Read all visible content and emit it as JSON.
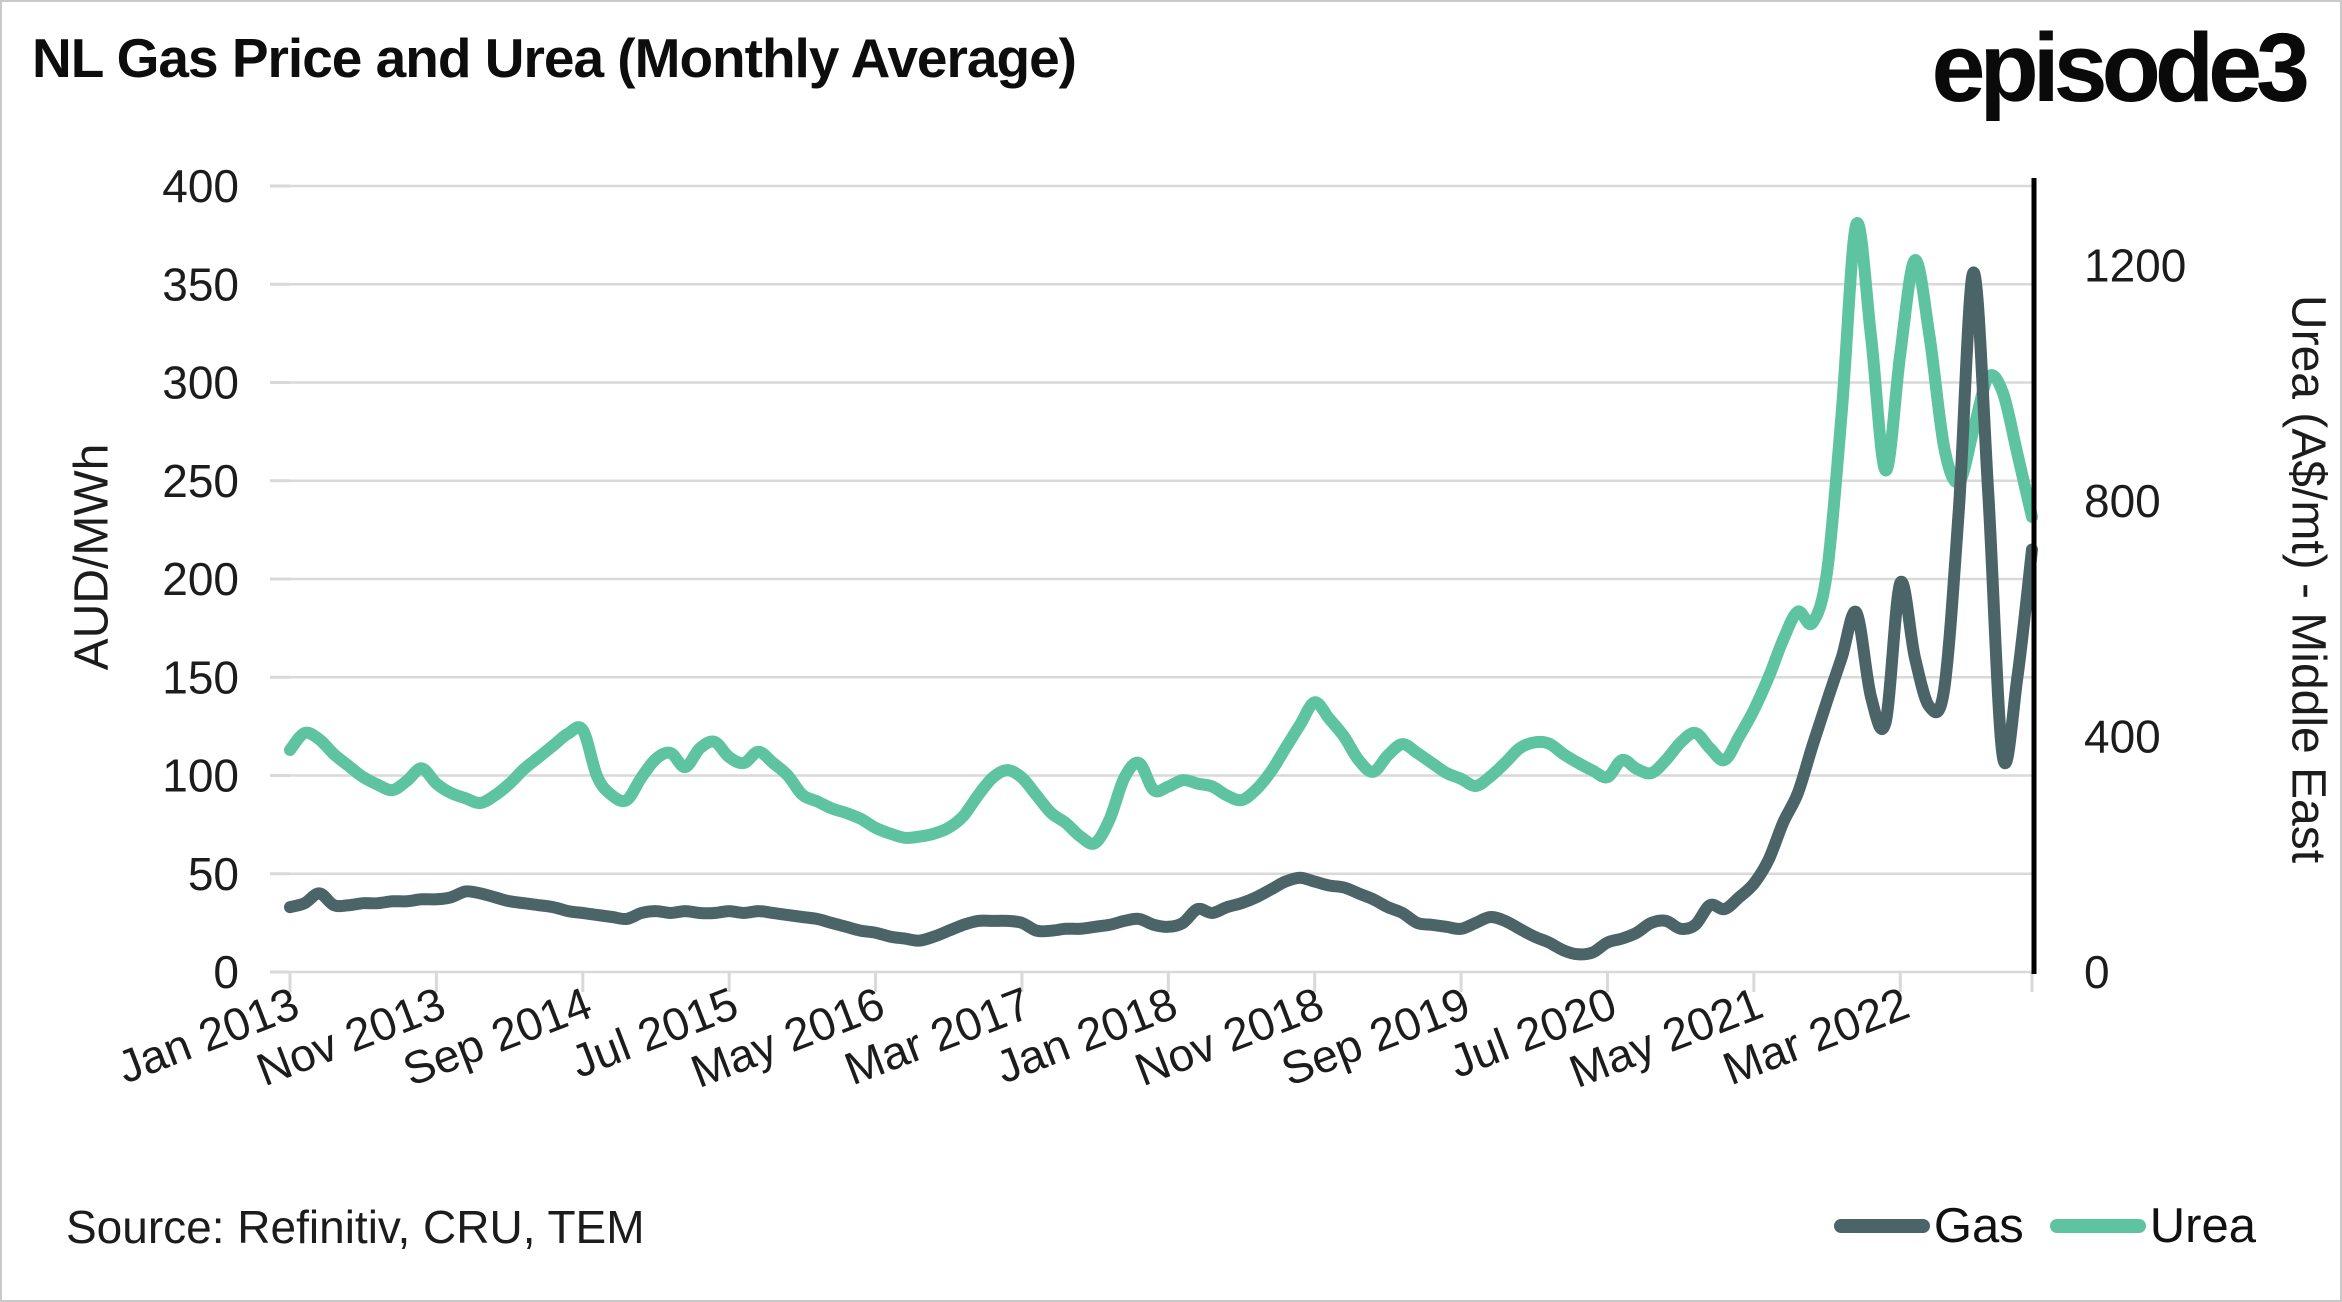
{
  "header": {
    "title": "NL Gas Price and Urea (Monthly Average)",
    "logo": "episode3"
  },
  "source": {
    "text": "Source: Refinitiv, CRU, TEM"
  },
  "legend": {
    "gas_label": "Gas",
    "urea_label": "Urea"
  },
  "colors": {
    "gas": "#4a6467",
    "urea": "#5ec3a1",
    "grid": "#d9d9d9",
    "axis_text": "#1c1c1c",
    "right_spine": "#000000",
    "background": "#ffffff",
    "border": "#c9c9c9"
  },
  "chart_data": {
    "type": "line",
    "title": "NL Gas Price and Urea (Monthly Average)",
    "x_unit": "month",
    "x_start": "Jan 2013",
    "x_end": "Dec 2022",
    "grid": true,
    "legend_position": "bottom-right",
    "x_tick_labels": [
      "Jan 2013",
      "Nov 2013",
      "Sep 2014",
      "Jul 2015",
      "May 2016",
      "Mar 2017",
      "Jan 2018",
      "Nov 2018",
      "Sep 2019",
      "Jul 2020",
      "May 2021",
      "Mar 2022"
    ],
    "x_tick_month_step": 10,
    "y_left": {
      "label": "AUD/MWh",
      "range": [
        0,
        400
      ],
      "ticks": [
        400,
        350,
        300,
        250,
        200,
        150,
        100,
        50,
        0
      ]
    },
    "y_right": {
      "label": "Urea (A$/mt) - Middle East",
      "range": [
        0,
        1335
      ],
      "ticks": [
        1200,
        800,
        400,
        0
      ]
    },
    "series": [
      {
        "name": "Gas",
        "axis": "left",
        "color": "#4a6467",
        "values": [
          33,
          35,
          40,
          34,
          34,
          35,
          35,
          36,
          36,
          37,
          37,
          38,
          41,
          40,
          38,
          36,
          35,
          34,
          33,
          31,
          30,
          29,
          28,
          27,
          30,
          31,
          30,
          31,
          30,
          30,
          31,
          30,
          31,
          30,
          29,
          28,
          27,
          25,
          23,
          21,
          20,
          18,
          17,
          16,
          18,
          21,
          24,
          26,
          26,
          26,
          25,
          21,
          21,
          22,
          22,
          23,
          24,
          26,
          27,
          24,
          23,
          25,
          32,
          30,
          33,
          35,
          38,
          42,
          46,
          48,
          46,
          44,
          43,
          40,
          37,
          33,
          30,
          25,
          24,
          23,
          22,
          25,
          28,
          26,
          22,
          18,
          15,
          11,
          9,
          10,
          15,
          17,
          20,
          25,
          26,
          22,
          24,
          34,
          32,
          38,
          45,
          57,
          76,
          91,
          115,
          138,
          160,
          183,
          140,
          127,
          198,
          160,
          135,
          144,
          235,
          356,
          245,
          110,
          150,
          215
        ]
      },
      {
        "name": "Urea",
        "axis": "right",
        "color": "#5ec3a1",
        "values": [
          377,
          406,
          395,
          370,
          350,
          331,
          318,
          309,
          325,
          346,
          320,
          304,
          295,
          287,
          300,
          320,
          345,
          365,
          385,
          405,
          411,
          331,
          300,
          292,
          330,
          362,
          372,
          348,
          380,
          391,
          365,
          355,
          374,
          355,
          334,
          301,
          290,
          278,
          270,
          260,
          245,
          235,
          228,
          230,
          235,
          245,
          265,
          300,
          330,
          343,
          330,
          300,
          270,
          253,
          230,
          219,
          260,
          330,
          355,
          309,
          315,
          326,
          320,
          315,
          300,
          292,
          310,
          340,
          380,
          420,
          458,
          430,
          400,
          360,
          340,
          368,
          387,
          372,
          355,
          338,
          328,
          316,
          332,
          355,
          380,
          390,
          388,
          370,
          355,
          342,
          331,
          360,
          345,
          338,
          360,
          390,
          406,
          380,
          360,
          400,
          445,
          500,
          564,
          612,
          593,
          680,
          950,
          1270,
          1080,
          852,
          1050,
          1209,
          1080,
          891,
          832,
          920,
          1010,
          985,
          880,
          773
        ]
      }
    ]
  }
}
